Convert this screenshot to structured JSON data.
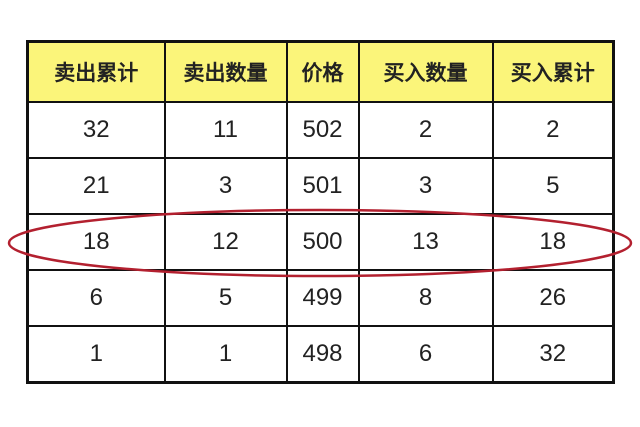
{
  "table": {
    "headers": [
      "卖出累计",
      "卖出数量",
      "价格",
      "买入数量",
      "买入累计"
    ],
    "rows": [
      [
        "32",
        "11",
        "502",
        "2",
        "2"
      ],
      [
        "21",
        "3",
        "501",
        "3",
        "5"
      ],
      [
        "18",
        "12",
        "500",
        "13",
        "18"
      ],
      [
        "6",
        "5",
        "499",
        "8",
        "26"
      ],
      [
        "1",
        "1",
        "498",
        "6",
        "32"
      ]
    ],
    "highlighted_row_price": "500"
  },
  "colors": {
    "header_bg": "#fbf57a",
    "highlight_ellipse": "#b3202f",
    "border": "#111111"
  }
}
